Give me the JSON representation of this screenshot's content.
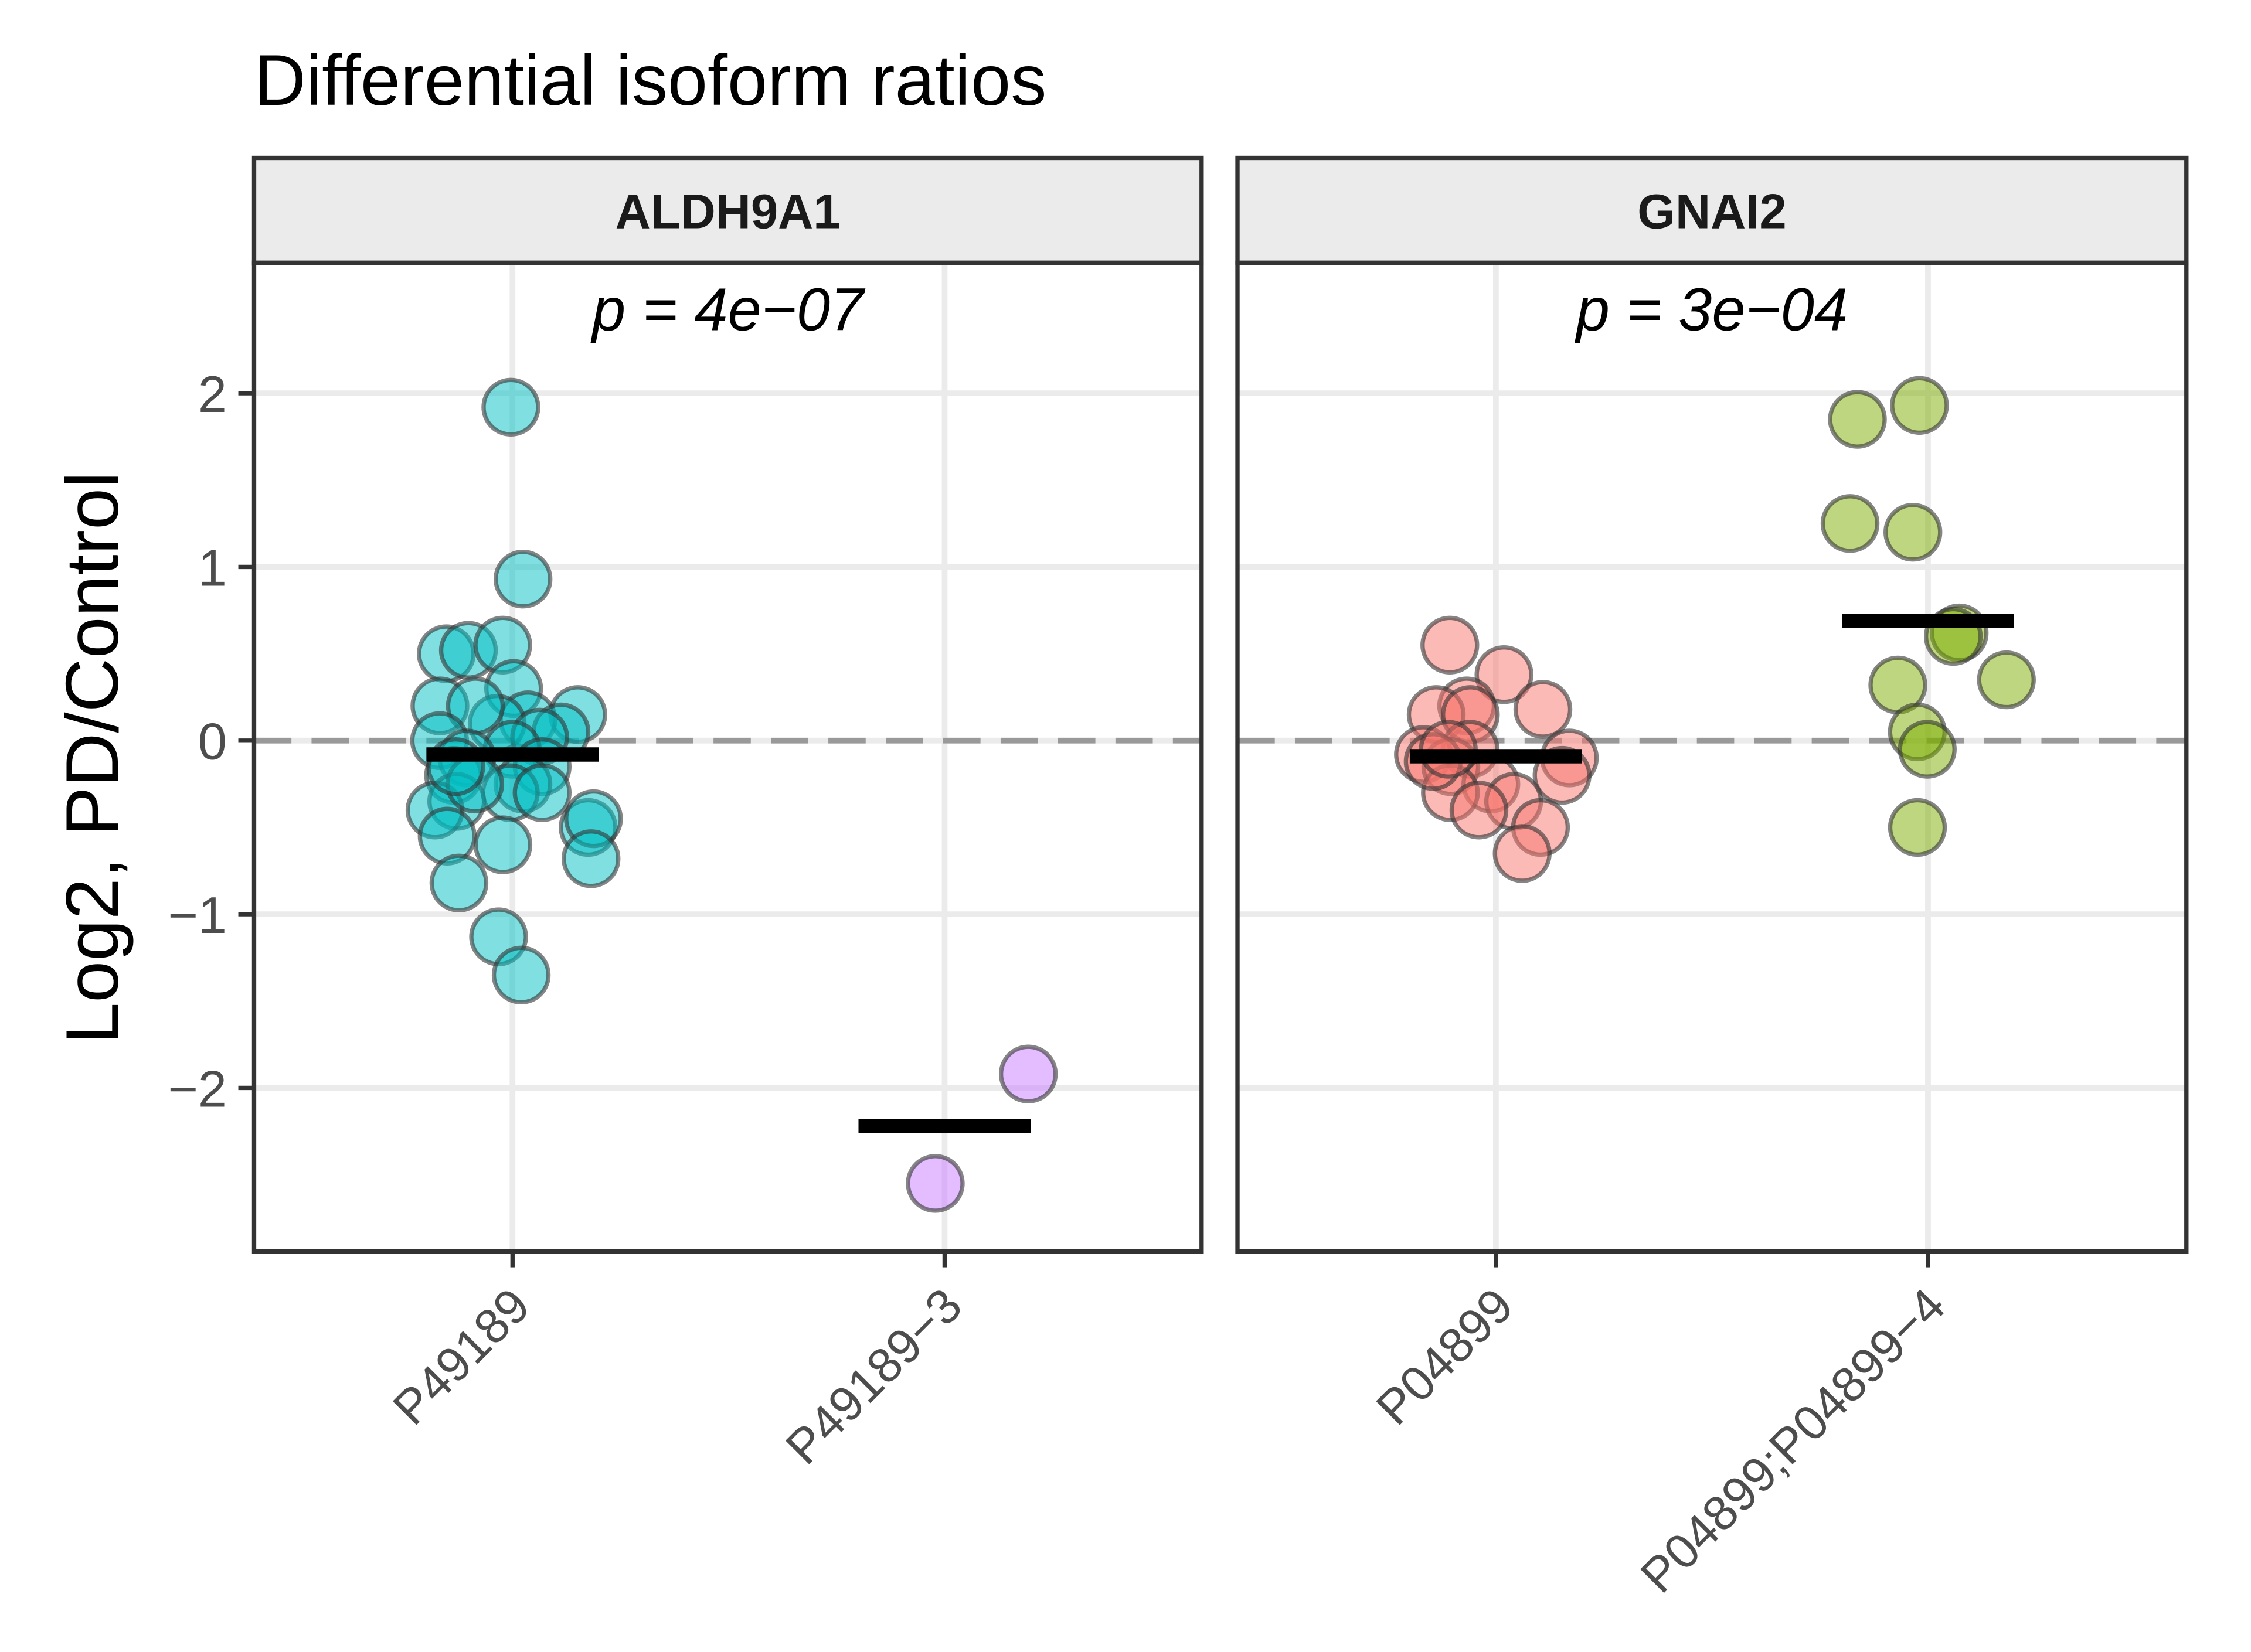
{
  "chart_data": {
    "type": "scatter",
    "title": "Differential isoform ratios",
    "ylabel": "Log2, PD/Control",
    "xlabel": "",
    "ylim": [
      -2.95,
      2.7
    ],
    "yticks": [
      2,
      1,
      0,
      -1,
      -2
    ],
    "ytick_labels": [
      "2",
      "1",
      "0",
      "−1",
      "−2"
    ],
    "reference_line": {
      "y": 0,
      "style": "dashed"
    },
    "grid": true,
    "colors": {
      "P49189": "#00BFC4",
      "P49189-3": "#C77CFF",
      "P04899": "#F8766D",
      "P04899;P04899-4": "#7CAE00"
    },
    "panels": [
      {
        "facet": "ALDH9A1",
        "annotation": "p = 4e−07",
        "categories": [
          "P49189",
          "P49189−3"
        ],
        "groups": [
          {
            "category": "P49189",
            "mean": -0.08,
            "values": [
              1.92,
              0.93,
              0.5,
              0.52,
              0.55,
              0.3,
              0.2,
              0.15,
              0.12,
              0.1,
              0.2,
              0.05,
              0.02,
              0.0,
              -0.05,
              -0.1,
              -0.15,
              -0.2,
              -0.25,
              -0.3,
              -0.35,
              -0.4,
              -0.5,
              -0.45,
              -0.55,
              -0.6,
              -0.68,
              -0.82,
              -1.13,
              -1.35,
              -0.3,
              -0.25,
              -0.15
            ]
          },
          {
            "category": "P49189−3",
            "mean": -2.22,
            "values": [
              -1.92,
              -2.55
            ]
          }
        ]
      },
      {
        "facet": "GNAI2",
        "annotation": "p = 3e−04",
        "categories": [
          "P04899",
          "P04899;P04899−4"
        ],
        "groups": [
          {
            "category": "P04899",
            "mean": -0.09,
            "values": [
              0.55,
              0.38,
              0.2,
              0.15,
              0.18,
              0.15,
              -0.05,
              -0.08,
              -0.1,
              -0.15,
              -0.2,
              -0.25,
              -0.3,
              -0.35,
              -0.4,
              -0.5,
              -0.65,
              -0.12,
              -0.05
            ]
          },
          {
            "category": "P04899;P04899−4",
            "mean": 0.69,
            "values": [
              1.93,
              1.85,
              1.25,
              1.2,
              0.62,
              0.6,
              0.35,
              0.32,
              0.05,
              -0.05,
              -0.5
            ]
          }
        ]
      }
    ]
  }
}
